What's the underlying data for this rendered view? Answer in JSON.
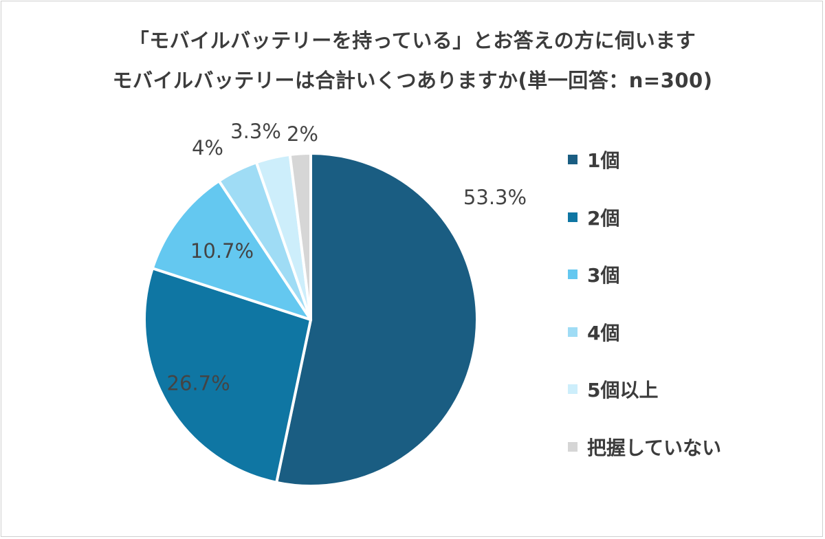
{
  "title_line1": "「モバイルバッテリーを持っている」とお答えの方に伺います",
  "title_line2": "モバイルバッテリーは合計いくつありますか(単一回答：n=300)",
  "chart_data": {
    "type": "pie",
    "categories": [
      "1個",
      "2個",
      "3個",
      "4個",
      "5個以上",
      "把握していない"
    ],
    "values": [
      53.3,
      26.7,
      10.7,
      4,
      3.3,
      2
    ],
    "labels": [
      "53.3%",
      "26.7%",
      "10.7%",
      "4%",
      "3.3%",
      "2%"
    ],
    "colors": [
      "#1a5d82",
      "#0f76a3",
      "#64c8f0",
      "#9fdcf5",
      "#cdeefb",
      "#d6d6d6"
    ],
    "legend_position": "right",
    "start_angle": "12 o'clock",
    "direction": "clockwise"
  }
}
